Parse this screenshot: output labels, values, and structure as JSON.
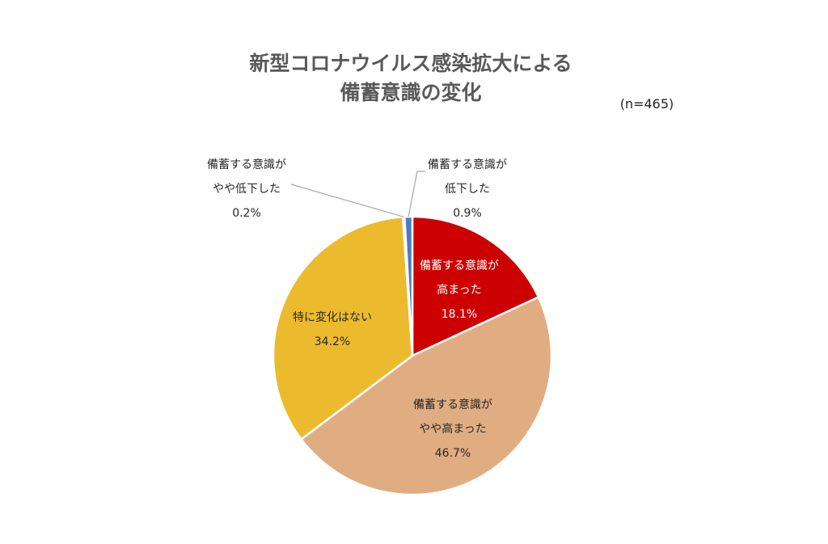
{
  "chart_data": {
    "type": "pie",
    "title_lines": [
      "新型コロナウイルス感染拡大による",
      "備蓄意識の変化"
    ],
    "sample_size": "(n=465)",
    "slices": [
      {
        "label_lines": [
          "備蓄する意識が",
          "高まった"
        ],
        "value": 18.1,
        "value_label": "18.1%",
        "color": "#cc0000",
        "label_color": "#ffffff"
      },
      {
        "label_lines": [
          "備蓄する意識が",
          "やや高まった"
        ],
        "value": 46.7,
        "value_label": "46.7%",
        "color": "#e0ad82",
        "label_color": "#262626"
      },
      {
        "label_lines": [
          "特に変化はない"
        ],
        "value": 34.2,
        "value_label": "34.2%",
        "color": "#ebbb2d",
        "label_color": "#262626"
      },
      {
        "label_lines": [
          "備蓄する意識が",
          "やや低下した"
        ],
        "value": 0.2,
        "value_label": "0.2%",
        "color": "#b8cce4",
        "label_color": "#262626"
      },
      {
        "label_lines": [
          "備蓄する意識が",
          "低下した"
        ],
        "value": 0.9,
        "value_label": "0.9%",
        "color": "#4a7ebb",
        "label_color": "#262626"
      }
    ],
    "start_position": "top",
    "direction": "clockwise"
  }
}
